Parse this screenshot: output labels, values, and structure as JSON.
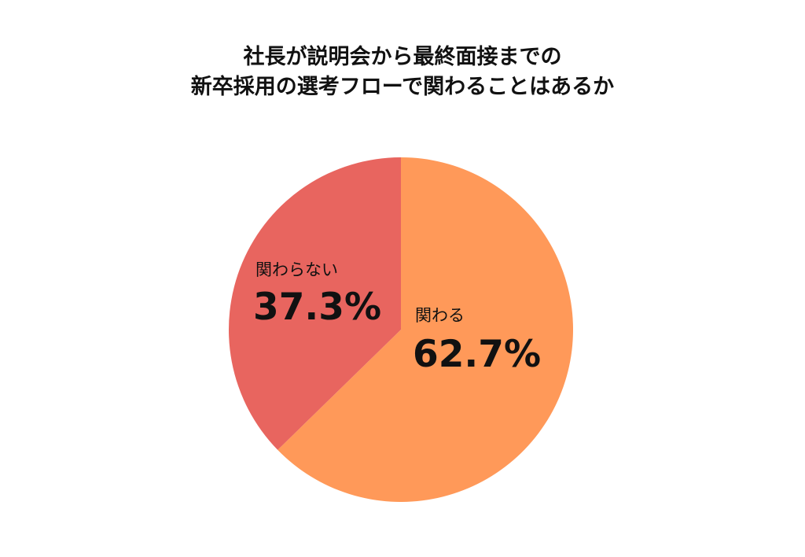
{
  "chart_data": {
    "type": "pie",
    "title_lines": [
      "社長が説明会から最終面接までの",
      "新卒採用の選考フローで関わることはあるか"
    ],
    "slices": [
      {
        "label": "関わる",
        "value": 62.7,
        "value_label": "62.7%",
        "color": "#FF9959"
      },
      {
        "label": "関わらない",
        "value": 37.3,
        "value_label": "37.3%",
        "color": "#E8655F"
      }
    ],
    "start_angle": "12 o'clock",
    "direction": "clockwise"
  }
}
